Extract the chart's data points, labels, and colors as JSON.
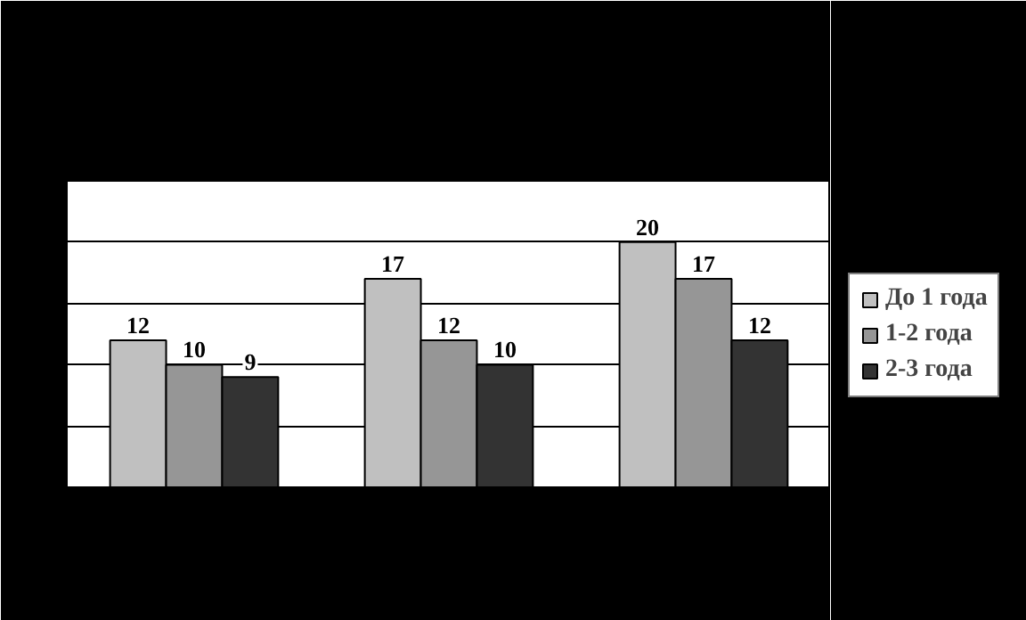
{
  "chart_data": {
    "type": "bar",
    "categories": [
      null,
      null,
      null
    ],
    "series": [
      {
        "name": "До 1 года",
        "color": "#c0c0c0",
        "values": [
          12,
          17,
          20
        ]
      },
      {
        "name": "1-2 года",
        "color": "#969696",
        "values": [
          10,
          12,
          17
        ]
      },
      {
        "name": "2-3 года",
        "color": "#333333",
        "values": [
          9,
          10,
          12
        ]
      }
    ],
    "ylim": [
      0,
      25
    ],
    "yticks": [
      {
        "value": 0,
        "label": null
      },
      {
        "value": 5,
        "label": null
      },
      {
        "value": 10,
        "label": null
      },
      {
        "value": 15,
        "label": null
      },
      {
        "value": 20,
        "label": null
      },
      {
        "value": 25,
        "label": null
      }
    ],
    "tick_labels": false,
    "grid": "y",
    "legend": "right",
    "data_labels": true
  }
}
